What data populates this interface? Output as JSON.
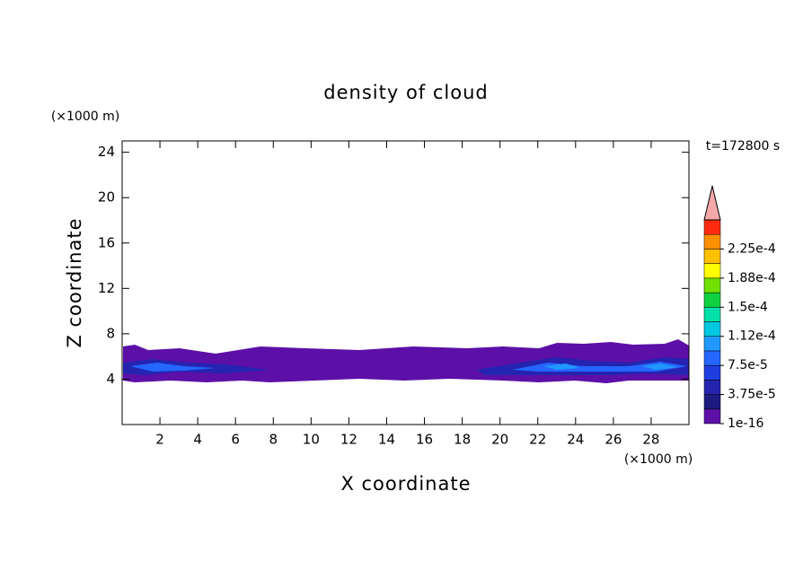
{
  "chart_data": {
    "type": "contour",
    "title": "density of cloud",
    "x_label": "X coordinate",
    "y_label": "Z coordinate",
    "x_unit": "(×1000 m)",
    "y_unit": "(×1000 m)",
    "time_label": "t=172800 s",
    "xlim": [
      0,
      30
    ],
    "xticks": [
      2,
      4,
      6,
      8,
      10,
      12,
      14,
      16,
      18,
      20,
      22,
      24,
      26,
      28
    ],
    "ylim": [
      0,
      25
    ],
    "yticks": [
      4,
      8,
      12,
      16,
      20,
      24
    ],
    "colorbar": {
      "ticks": [
        {
          "value": 1e-16,
          "label": "1e-16"
        },
        {
          "value": 3.75e-05,
          "label": "3.75e-5"
        },
        {
          "value": 7.5e-05,
          "label": "7.5e-5"
        },
        {
          "value": 0.0001125,
          "label": "1.12e-4"
        },
        {
          "value": 0.00015,
          "label": "1.5e-4"
        },
        {
          "value": 0.0001875,
          "label": "1.88e-4"
        },
        {
          "value": 0.000225,
          "label": "2.25e-4"
        }
      ],
      "colors": [
        "#5c10a8",
        "#1c1c80",
        "#2424b0",
        "#1e3ee0",
        "#2466ff",
        "#2098ff",
        "#00c8e0",
        "#00e0a8",
        "#10d040",
        "#70e000",
        "#ffff00",
        "#ffc000",
        "#ff9000",
        "#ff2a10"
      ],
      "over_color": "#f4a8a8"
    }
  }
}
